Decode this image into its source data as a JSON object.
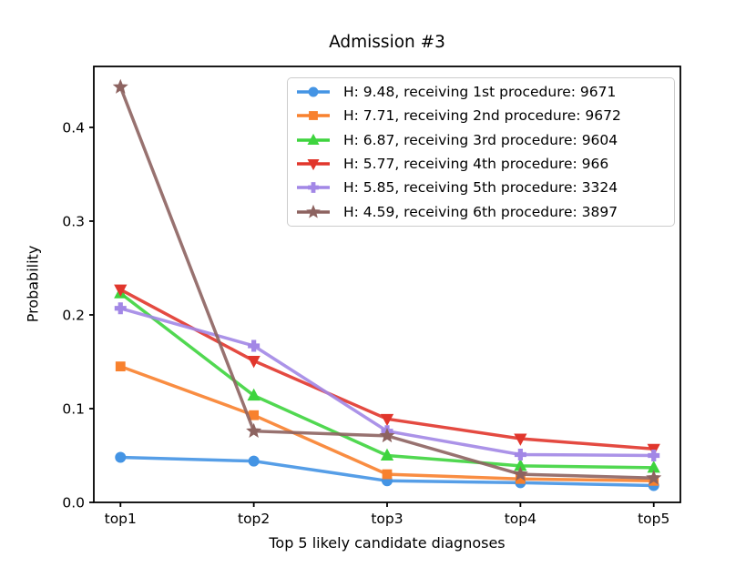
{
  "chart_data": {
    "type": "line",
    "title": "Admission #3",
    "xlabel": "Top 5 likely candidate diagnoses",
    "ylabel": "Probability",
    "categories": [
      "top1",
      "top2",
      "top3",
      "top4",
      "top5"
    ],
    "ytick_labels": [
      "0.0",
      "0.1",
      "0.2",
      "0.3",
      "0.4"
    ],
    "yticks": [
      0.0,
      0.1,
      0.2,
      0.3,
      0.4
    ],
    "ylim": [
      0.0,
      0.465
    ],
    "grid": false,
    "legend_position": "upper right",
    "axis_color": "#000000",
    "series": [
      {
        "name": "H: 9.48, receiving 1st procedure: 9671",
        "color": "#4494e4",
        "marker": "circle",
        "values": [
          0.048,
          0.044,
          0.023,
          0.021,
          0.018
        ]
      },
      {
        "name": "H: 7.71, receiving 2nd procedure: 9672",
        "color": "#f8812e",
        "marker": "square",
        "values": [
          0.145,
          0.093,
          0.03,
          0.025,
          0.023
        ]
      },
      {
        "name": "H: 6.87, receiving 3rd procedure: 9604",
        "color": "#3ed43e",
        "marker": "triangle-up",
        "values": [
          0.223,
          0.114,
          0.05,
          0.039,
          0.037
        ]
      },
      {
        "name": "H: 5.77, receiving 4th procedure: 966",
        "color": "#e1362c",
        "marker": "triangle-down",
        "values": [
          0.227,
          0.151,
          0.089,
          0.068,
          0.057
        ]
      },
      {
        "name": "H: 5.85, receiving 5th procedure: 3324",
        "color": "#a287e6",
        "marker": "plus",
        "values": [
          0.207,
          0.167,
          0.076,
          0.051,
          0.05
        ]
      },
      {
        "name": "H: 4.59, receiving 6th procedure: 3897",
        "color": "#8d6360",
        "marker": "star",
        "values": [
          0.443,
          0.076,
          0.071,
          0.03,
          0.026
        ]
      }
    ]
  }
}
